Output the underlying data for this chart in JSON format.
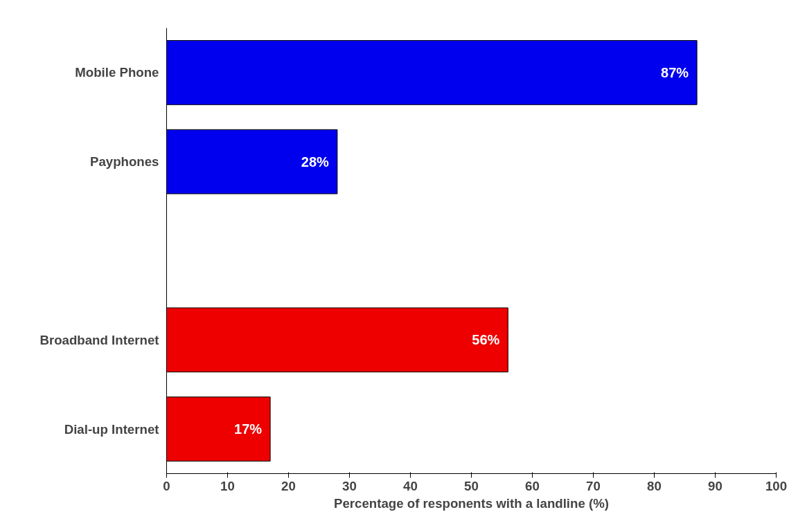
{
  "chart_data": {
    "type": "bar",
    "orientation": "horizontal",
    "categories": [
      "Mobile Phone",
      "Payphones",
      null,
      "Broadband Internet",
      "Dial-up Internet"
    ],
    "values": [
      87,
      28,
      null,
      56,
      17
    ],
    "colors": [
      "#0000ee",
      "#0000ee",
      null,
      "#ee0000",
      "#ee0000"
    ],
    "xlabel": "Percentage of responents with a landline (%)",
    "xlim": [
      0,
      100
    ],
    "xticks": [
      0,
      10,
      20,
      30,
      40,
      50,
      60,
      70,
      80,
      90,
      100
    ],
    "value_labels": [
      "87%",
      "28%",
      null,
      "56%",
      "17%"
    ],
    "grid": false
  }
}
